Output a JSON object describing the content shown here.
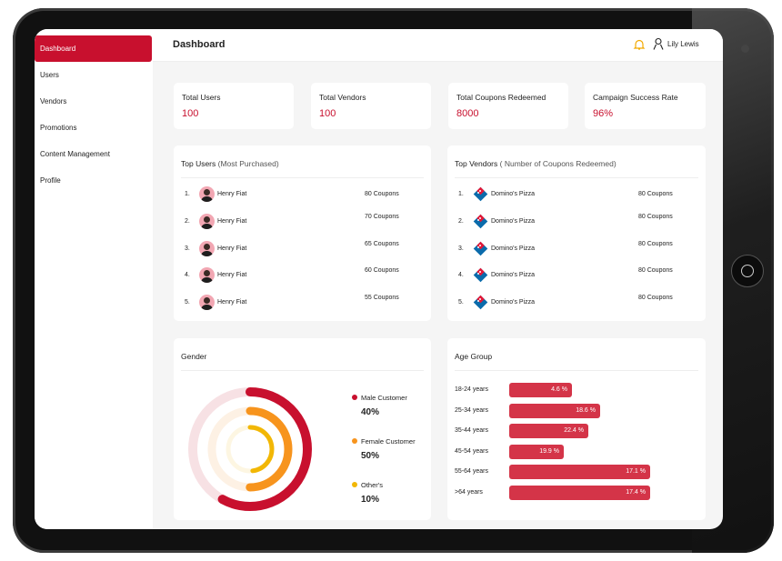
{
  "sidebar": {
    "items": [
      {
        "label": "Dashboard"
      },
      {
        "label": "Users"
      },
      {
        "label": "Vendors"
      },
      {
        "label": "Promotions"
      },
      {
        "label": "Content Management"
      },
      {
        "label": "Profile"
      }
    ]
  },
  "header": {
    "title": "Dashboard",
    "user": "Lily Lewis"
  },
  "stats": [
    {
      "label": "Total Users",
      "value": "100"
    },
    {
      "label": "Total Vendors",
      "value": "100"
    },
    {
      "label": "Total Coupons Redeemed",
      "value": "8000"
    },
    {
      "label": "Campaign Success Rate",
      "value": "96%"
    }
  ],
  "top_users": {
    "title": "Top Users",
    "subtitle": "(Most Purchased)",
    "rows": [
      {
        "rank": "1.",
        "name": "Henry Fiat",
        "coupons": "80 Coupons"
      },
      {
        "rank": "2.",
        "name": "Henry Fiat",
        "coupons": "70 Coupons"
      },
      {
        "rank": "3.",
        "name": "Henry Fiat",
        "coupons": "65 Coupons"
      },
      {
        "rank": "4.",
        "name": "Henry Fiat",
        "coupons": "60 Coupons"
      },
      {
        "rank": "5.",
        "name": "Henry Fiat",
        "coupons": "55 Coupons"
      }
    ]
  },
  "top_vendors": {
    "title": "Top Vendors",
    "subtitle": "( Number of Coupons Redeemed)",
    "rows": [
      {
        "rank": "1.",
        "name": "Domino's Pizza",
        "coupons": "80 Coupons"
      },
      {
        "rank": "2.",
        "name": "Domino's Pizza",
        "coupons": "80 Coupons"
      },
      {
        "rank": "3.",
        "name": "Domino's Pizza",
        "coupons": "80 Coupons"
      },
      {
        "rank": "4.",
        "name": "Domino's Pizza",
        "coupons": "80 Coupons"
      },
      {
        "rank": "5.",
        "name": "Domino's Pizza",
        "coupons": "80 Coupons"
      }
    ]
  },
  "gender": {
    "title": "Gender",
    "items": [
      {
        "label": "Male Customer",
        "value": "40%",
        "color": "#c8102e"
      },
      {
        "label": "Female Customer",
        "value": "50%",
        "color": "#f7941d"
      },
      {
        "label": "Other's",
        "value": "10%",
        "color": "#f2b705"
      }
    ]
  },
  "age": {
    "title": "Age Group",
    "items": [
      {
        "label": "18-24 years",
        "value": "4.6 %"
      },
      {
        "label": "25-34 years",
        "value": "18.6 %"
      },
      {
        "label": "35-44 years",
        "value": "22.4 %"
      },
      {
        "label": "45-54 years",
        "value": "19.9 %"
      },
      {
        "label": "55-64 years",
        "value": "17.1 %"
      },
      {
        "label": ">64 years",
        "value": "17.4 %"
      }
    ]
  }
}
